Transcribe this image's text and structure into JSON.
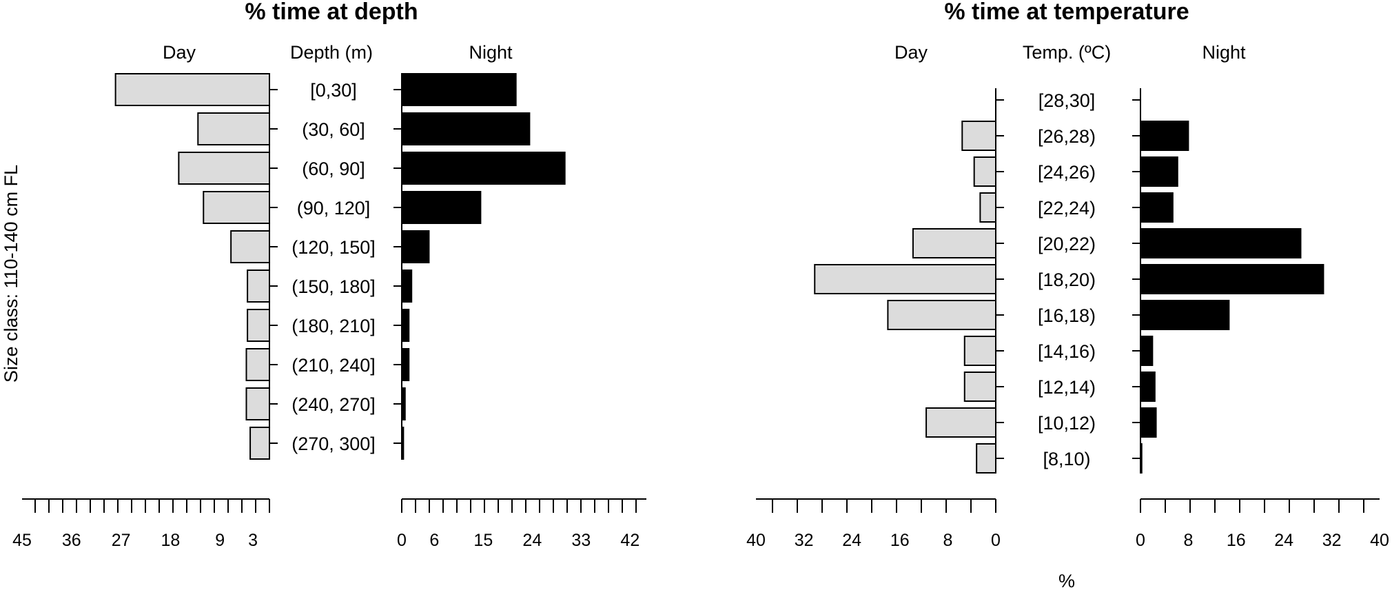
{
  "y_label": "Size class: 110-140 cm FL",
  "x_unit_label": "%",
  "chart_data": [
    {
      "type": "bar",
      "orientation": "horizontal-butterfly",
      "title": "% time at depth",
      "category_header": "Depth (m)",
      "categories": [
        "[0,30]",
        "(30, 60]",
        "(60, 90]",
        "(90, 120]",
        "(120, 150]",
        "(150, 180]",
        "(180, 210]",
        "(210, 240]",
        "(240, 270]",
        "(270, 300]"
      ],
      "series": [
        {
          "name": "Day",
          "values": [
            28,
            13,
            16.5,
            12,
            7,
            4,
            4,
            4.2,
            4.2,
            3.5
          ],
          "color": "#dcdcdc",
          "axis_ticks": [
            45,
            36,
            27,
            18,
            9,
            3
          ],
          "xlim": [
            0,
            45
          ]
        },
        {
          "name": "Night",
          "values": [
            21,
            23.5,
            30,
            14.5,
            5,
            1.8,
            1.3,
            1.3,
            0.6,
            0.3
          ],
          "color": "#000000",
          "axis_ticks": [
            0,
            6,
            15,
            24,
            33,
            42
          ],
          "xlim": [
            0,
            45
          ]
        }
      ]
    },
    {
      "type": "bar",
      "orientation": "horizontal-butterfly",
      "title": "% time at temperature",
      "category_header": "Temp. (ºC)",
      "categories": [
        "[28,30]",
        "[26,28)",
        "[24,26)",
        "[22,24)",
        "[20,22)",
        "[18,20)",
        "[16,18)",
        "[14,16)",
        "[12,14)",
        "[10,12)",
        "[8,10)"
      ],
      "series": [
        {
          "name": "Day",
          "values": [
            0,
            5.6,
            3.6,
            2.6,
            13.8,
            30.2,
            18,
            5.2,
            5.2,
            11.6,
            3.2
          ],
          "color": "#dcdcdc",
          "axis_ticks": [
            40,
            32,
            24,
            16,
            8,
            0
          ],
          "xlim": [
            0,
            40
          ]
        },
        {
          "name": "Night",
          "values": [
            0,
            8,
            6.2,
            5.4,
            26.8,
            30.6,
            14.8,
            2,
            2.4,
            2.6,
            0.2
          ],
          "color": "#000000",
          "axis_ticks": [
            0,
            8,
            16,
            24,
            32,
            40
          ],
          "xlim": [
            0,
            40
          ]
        }
      ]
    }
  ]
}
